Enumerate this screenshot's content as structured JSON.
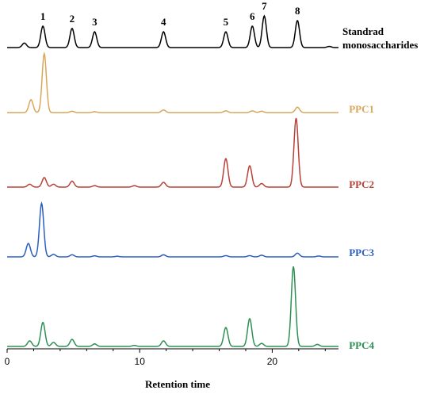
{
  "chart_data": {
    "type": "line",
    "title": "",
    "xlabel": "Retention time",
    "ylabel": "",
    "xlim": [
      0,
      25
    ],
    "xticks": [
      "0",
      "10",
      "20"
    ],
    "grid": false,
    "series_label_placement": "right",
    "peak_numbers": [
      {
        "label": "1",
        "x": 2.7
      },
      {
        "label": "2",
        "x": 4.9
      },
      {
        "label": "3",
        "x": 6.6
      },
      {
        "label": "4",
        "x": 11.8
      },
      {
        "label": "5",
        "x": 16.5
      },
      {
        "label": "6",
        "x": 18.5
      },
      {
        "label": "7",
        "x": 19.4
      },
      {
        "label": "8",
        "x": 21.9
      }
    ],
    "series": [
      {
        "name_lines": [
          "Standrad",
          "monosaccharides"
        ],
        "color": "#000000",
        "peaks": [
          [
            1.3,
            0.2
          ],
          [
            2.7,
            0.95
          ],
          [
            4.9,
            0.85
          ],
          [
            6.6,
            0.7
          ],
          [
            11.8,
            0.7
          ],
          [
            16.5,
            0.7
          ],
          [
            18.5,
            0.95
          ],
          [
            19.4,
            1.4
          ],
          [
            21.9,
            1.2
          ],
          [
            24.3,
            0.05
          ]
        ]
      },
      {
        "name": "PPC1",
        "color": "#d9a65b",
        "peaks": [
          [
            1.8,
            0.6
          ],
          [
            2.8,
            2.75
          ],
          [
            4.9,
            0.06
          ],
          [
            6.6,
            0.04
          ],
          [
            11.8,
            0.12
          ],
          [
            16.5,
            0.08
          ],
          [
            18.5,
            0.08
          ],
          [
            19.2,
            0.06
          ],
          [
            21.9,
            0.25
          ]
        ]
      },
      {
        "name": "PPC2",
        "color": "#b84238",
        "peaks": [
          [
            1.7,
            0.12
          ],
          [
            2.8,
            0.4
          ],
          [
            3.5,
            0.12
          ],
          [
            4.9,
            0.25
          ],
          [
            6.6,
            0.06
          ],
          [
            9.6,
            0.06
          ],
          [
            11.8,
            0.2
          ],
          [
            16.5,
            1.2
          ],
          [
            18.3,
            0.9
          ],
          [
            19.2,
            0.15
          ],
          [
            21.8,
            2.9
          ]
        ]
      },
      {
        "name": "PPC3",
        "color": "#2a5fc0",
        "peaks": [
          [
            1.6,
            0.65
          ],
          [
            2.6,
            2.6
          ],
          [
            3.5,
            0.12
          ],
          [
            4.9,
            0.1
          ],
          [
            6.6,
            0.05
          ],
          [
            8.3,
            0.03
          ],
          [
            11.8,
            0.1
          ],
          [
            16.5,
            0.06
          ],
          [
            18.3,
            0.06
          ],
          [
            19.2,
            0.08
          ],
          [
            21.9,
            0.18
          ],
          [
            23.5,
            0.04
          ]
        ]
      },
      {
        "name": "PPC4",
        "color": "#2e8f55",
        "peaks": [
          [
            1.7,
            0.22
          ],
          [
            2.7,
            0.95
          ],
          [
            3.5,
            0.16
          ],
          [
            4.9,
            0.28
          ],
          [
            6.6,
            0.1
          ],
          [
            9.6,
            0.04
          ],
          [
            11.8,
            0.22
          ],
          [
            16.5,
            0.75
          ],
          [
            18.3,
            1.1
          ],
          [
            19.2,
            0.12
          ],
          [
            21.6,
            3.15
          ],
          [
            23.4,
            0.08
          ]
        ]
      }
    ]
  }
}
